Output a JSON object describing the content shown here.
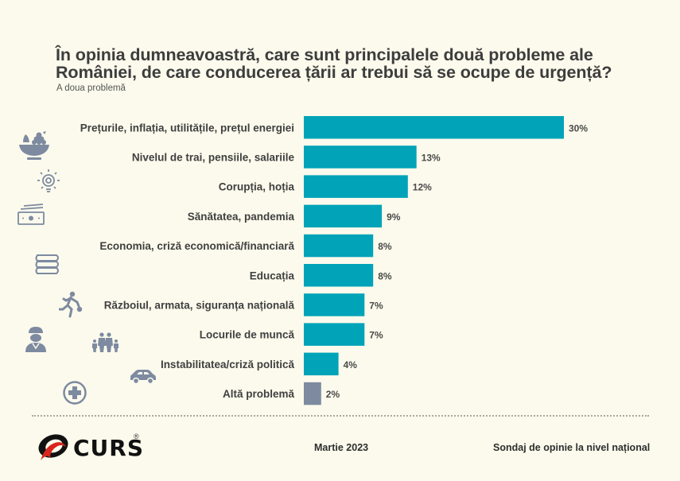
{
  "header": {
    "title": "În opinia dumneavoastră, care sunt principalele două probleme ale României, de care conducerea țării ar trebui să se ocupe de urgență?",
    "subtitle": "A doua problemă"
  },
  "colors": {
    "bar_primary": "#00a3b8",
    "bar_other": "#7d8aa0",
    "icon": "#7d8aa0",
    "background": "#fbfaec"
  },
  "chart_data": {
    "type": "bar",
    "orientation": "horizontal",
    "title": "În opinia dumneavoastră, care sunt principalele două probleme ale României, de care conducerea țării ar trebui să se ocupe de urgență?",
    "subtitle": "A doua problemă",
    "xlabel": "",
    "ylabel": "",
    "unit": "%",
    "xlim": [
      0,
      30
    ],
    "grid": false,
    "legend": "none",
    "categories": [
      "Prețurile, inflația, utilitățile, prețul energiei",
      "Nivelul de trai, pensiile, salariile",
      "Corupția, hoția",
      "Sănătatea, pandemia",
      "Economia, criză economică/financiară",
      "Educația",
      "Războiul, armata, siguranța națională",
      "Locurile de muncă",
      "Instabilitatea/criză politică",
      "Altă problemă"
    ],
    "values": [
      30,
      13,
      12,
      9,
      8,
      8,
      7,
      7,
      4,
      2
    ],
    "value_labels": [
      "30%",
      "13%",
      "12%",
      "9%",
      "8%",
      "8%",
      "7%",
      "7%",
      "4%",
      "2%"
    ],
    "bar_colors": [
      "#00a3b8",
      "#00a3b8",
      "#00a3b8",
      "#00a3b8",
      "#00a3b8",
      "#00a3b8",
      "#00a3b8",
      "#00a3b8",
      "#00a3b8",
      "#7d8aa0"
    ]
  },
  "icons": [
    "fruit-bowl-icon",
    "lightbulb-icon",
    "money-icon",
    "books-icon",
    "runner-thief-icon",
    "soldier-icon",
    "family-icon",
    "car-icon",
    "medical-cross-icon"
  ],
  "footer": {
    "brand": "CURS",
    "registered": "®",
    "date": "Martie 2023",
    "source": "Sondaj de opinie la nivel național"
  }
}
